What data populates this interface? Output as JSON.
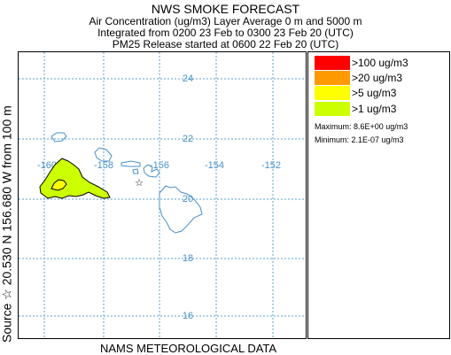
{
  "header": {
    "title": "NWS SMOKE FORECAST",
    "line1": "Air Concentration (ug/m3) Layer Average    0 m and  5000 m",
    "line2": "Integrated from 0200 23 Feb to 0300 23 Feb 20 (UTC)",
    "line3": "PM25 Release started at 0600 22 Feb 20 (UTC)"
  },
  "side_label": "Source ☆  20.530  N 156.680  W     from  100 m",
  "footer": "NAMS METEOROLOGICAL DATA",
  "map": {
    "latitude_labels": [
      "24",
      "22",
      "20",
      "18",
      "16"
    ],
    "longitude_labels": [
      "-160",
      "-158",
      "-156",
      "-154",
      "-152"
    ],
    "source_marker": "☆",
    "colors": {
      "gridline": "#5aa0d0",
      "coastline": "#4a90c8",
      "plume_fill": "#ccff00",
      "plume_inner": "#ffff00",
      "plume_outline": "#000000"
    }
  },
  "legend": {
    "items": [
      {
        "label": ">100 ug/m3",
        "color": "#ff0000"
      },
      {
        "label": ">20 ug/m3",
        "color": "#ff9900"
      },
      {
        "label": ">5 ug/m3",
        "color": "#ffff00"
      },
      {
        "label": ">1 ug/m3",
        "color": "#ccff00"
      }
    ],
    "maximum": "Maximum: 8.6E+00 ug/m3",
    "minimum": "Minimum: 2.1E-07 ug/m3"
  }
}
